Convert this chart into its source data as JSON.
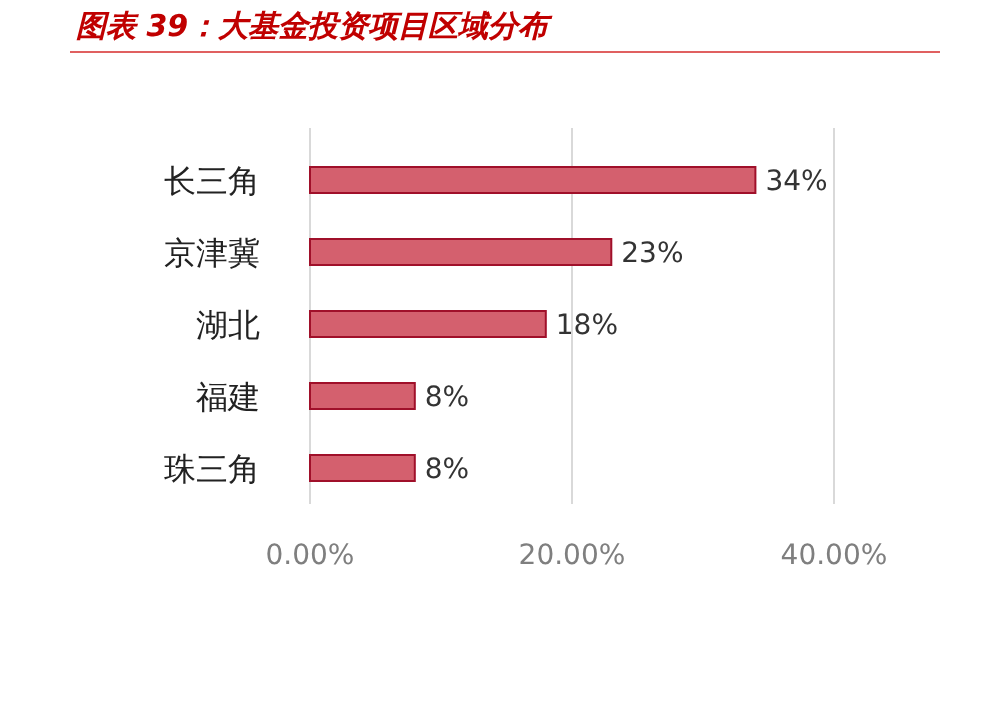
{
  "chart_data": {
    "type": "bar",
    "orientation": "horizontal",
    "title": "图表 39：大基金投资项目区域分布",
    "categories": [
      "长三角",
      "京津冀",
      "湖北",
      "福建",
      "珠三角"
    ],
    "values": [
      34,
      23,
      18,
      8,
      8
    ],
    "value_labels": [
      "34%",
      "23%",
      "18%",
      "8%",
      "8%"
    ],
    "color": "#d4606e",
    "xlim": [
      0,
      40
    ],
    "xticks": [
      {
        "value": 0,
        "label": "0.00%"
      },
      {
        "value": 20,
        "label": "20.00%"
      },
      {
        "value": 40,
        "label": "40.00%"
      }
    ],
    "grid": "x"
  }
}
